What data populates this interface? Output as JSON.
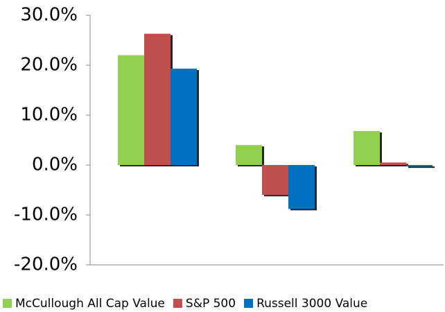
{
  "chart_data": {
    "type": "bar",
    "categories": [
      null,
      null,
      null
    ],
    "series": [
      {
        "name": "McCullough All Cap Value",
        "color": "#92d050",
        "values": [
          22,
          4,
          6.8
        ]
      },
      {
        "name": "S&P 500",
        "color": "#c0504d",
        "values": [
          26.3,
          -6,
          0.5
        ]
      },
      {
        "name": "Russell 3000 Value",
        "color": "#0070c0",
        "values": [
          19.3,
          -8.8,
          -0.3
        ]
      }
    ],
    "ylim": [
      -20,
      30
    ],
    "yticks": [
      {
        "value": -20,
        "label": "-20.0%"
      },
      {
        "value": -10,
        "label": "-10.0%"
      },
      {
        "value": 0,
        "label": "0.0%"
      },
      {
        "value": 10,
        "label": "10.0%"
      },
      {
        "value": 20,
        "label": "20.0%"
      },
      {
        "value": 30,
        "label": "30.0%"
      }
    ],
    "grid": false,
    "legend": "bottom"
  }
}
